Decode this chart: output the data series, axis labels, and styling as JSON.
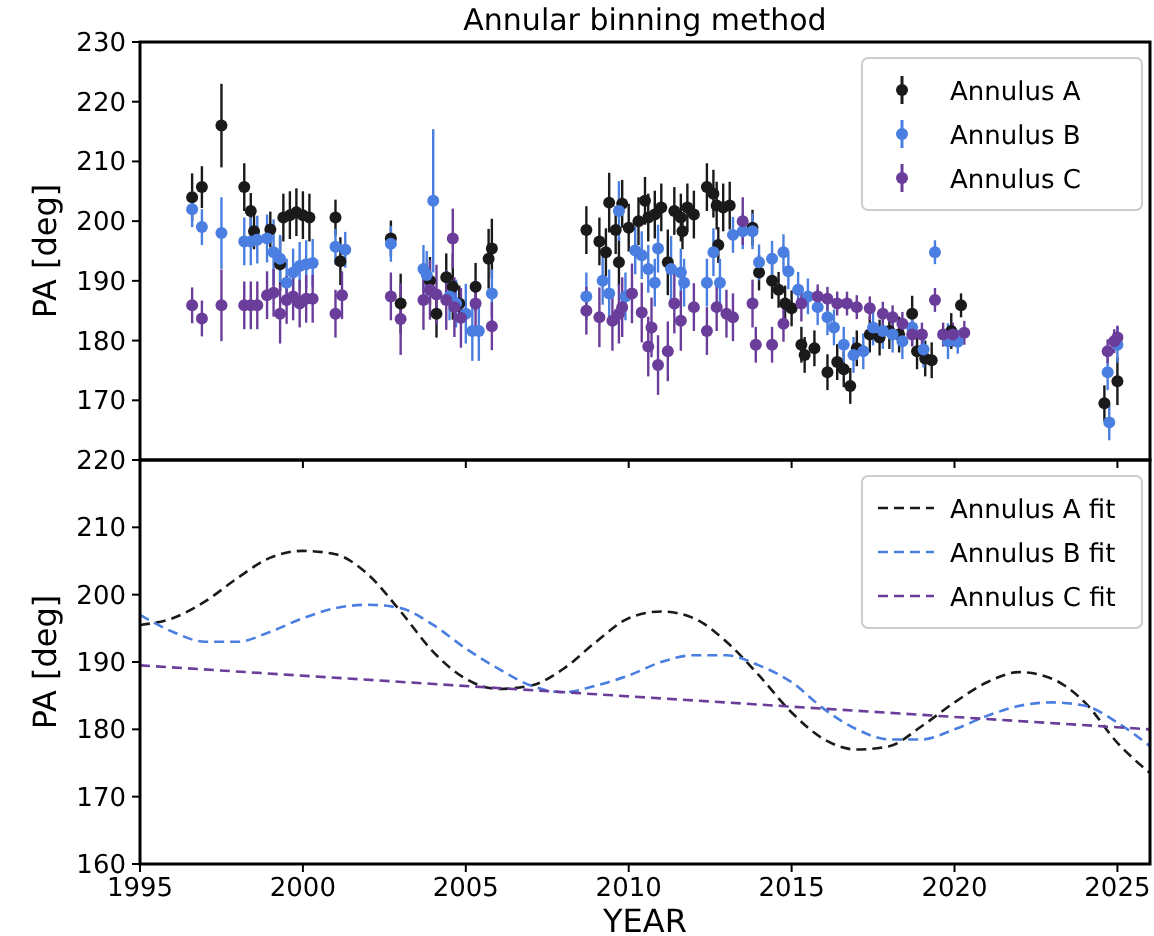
{
  "chart_data": [
    {
      "type": "scatter",
      "title": "Annular binning method",
      "ylabel": "PA [deg]",
      "xlim": [
        1995,
        2026
      ],
      "xticks": [
        1995,
        2000,
        2005,
        2010,
        2015,
        2020,
        2025
      ],
      "ylim": [
        160,
        230
      ],
      "yticks": [
        170,
        180,
        190,
        200,
        210,
        220,
        230
      ],
      "tick_labels": "y",
      "marker": "circle",
      "legend": "top right",
      "grid": false,
      "series": [
        {
          "name": "Annulus A",
          "color": "#1a1a1a",
          "x": [
            1996.6,
            1996.9,
            1997.5,
            1998.2,
            1998.4,
            1998.5,
            1999.0,
            1999.3,
            1999.4,
            1999.6,
            1999.8,
            2000.0,
            2000.2,
            2001.0,
            2001.15,
            2002.7,
            2003.0,
            2003.9,
            2004.1,
            2004.4,
            2004.6,
            2004.8,
            2005.3,
            2005.7,
            2005.8,
            2008.7,
            2009.1,
            2009.3,
            2009.4,
            2009.6,
            2009.7,
            2009.8,
            2010.0,
            2010.3,
            2010.5,
            2010.6,
            2010.8,
            2011.0,
            2011.2,
            2011.4,
            2011.6,
            2011.65,
            2011.8,
            2012.0,
            2012.4,
            2012.6,
            2012.7,
            2012.75,
            2012.9,
            2013.1,
            2013.8,
            2014.0,
            2014.4,
            2014.6,
            2014.8,
            2015.0,
            2015.3,
            2015.4,
            2015.7,
            2016.1,
            2016.4,
            2016.6,
            2016.8,
            2017.0,
            2017.4,
            2017.7,
            2018.0,
            2018.3,
            2018.7,
            2018.85,
            2019.1,
            2019.3,
            2019.9,
            2020.2,
            2024.6,
            2025.0
          ],
          "values": [
            204,
            205.7,
            216,
            205.7,
            201.7,
            198.3,
            198.6,
            192.8,
            200.6,
            201,
            201.5,
            201,
            200.6,
            200.6,
            193.3,
            197.1,
            186.2,
            190,
            184.5,
            190.6,
            189,
            186.2,
            189,
            193.7,
            195.4,
            198.5,
            196.6,
            194.8,
            203.1,
            198.5,
            193.1,
            202.9,
            198.9,
            200,
            203.4,
            200.6,
            201.1,
            202.3,
            193.1,
            201.7,
            200.6,
            198.3,
            202.3,
            201.1,
            205.7,
            204.6,
            202.6,
            196,
            202.3,
            202.6,
            198.9,
            191.4,
            190,
            188.5,
            186.2,
            185.4,
            179.3,
            177.6,
            178.7,
            174.7,
            176.4,
            175.2,
            172.4,
            178.7,
            181,
            180.5,
            181.6,
            181,
            184.5,
            178.2,
            177,
            176.7,
            181.6,
            185.9,
            169.5,
            173.2
          ],
          "errors": [
            4,
            3.5,
            7,
            4,
            3,
            3,
            3,
            4.5,
            4,
            4,
            4,
            4,
            4,
            3,
            4,
            3,
            5,
            4,
            4,
            4,
            5.5,
            3,
            4,
            5,
            5,
            4,
            4,
            4,
            5,
            4,
            4,
            4,
            4,
            4,
            4,
            4,
            4,
            4,
            5.5,
            4,
            4,
            3,
            4,
            4,
            4,
            4,
            4,
            3,
            4,
            4,
            3,
            3,
            3,
            3,
            3,
            3,
            3,
            3,
            3,
            3,
            3,
            3,
            3,
            3,
            3,
            3,
            3,
            3,
            3,
            3,
            3,
            3,
            3,
            2,
            3,
            4
          ]
        },
        {
          "name": "Annulus B",
          "color": "#4a7ee0",
          "x": [
            1996.6,
            1996.9,
            1997.5,
            1998.2,
            1998.4,
            1998.6,
            1998.9,
            1999.1,
            1999.3,
            1999.5,
            1999.7,
            1999.9,
            2000.1,
            2000.3,
            2001.0,
            2001.3,
            2002.7,
            2003.7,
            2003.8,
            2004.0,
            2004.5,
            2004.7,
            2005.0,
            2005.2,
            2005.4,
            2005.8,
            2008.7,
            2009.2,
            2009.4,
            2009.7,
            2009.9,
            2010.2,
            2010.4,
            2010.6,
            2010.8,
            2010.9,
            2011.3,
            2011.6,
            2011.7,
            2012.4,
            2012.6,
            2012.8,
            2013.2,
            2013.5,
            2013.8,
            2014.0,
            2014.4,
            2014.75,
            2014.9,
            2015.2,
            2015.5,
            2015.8,
            2016.1,
            2016.3,
            2016.6,
            2016.9,
            2017.2,
            2017.5,
            2017.8,
            2018.1,
            2018.4,
            2018.7,
            2019.05,
            2019.4,
            2019.8,
            2020.1,
            2024.7,
            2024.75,
            2025.0
          ],
          "values": [
            202,
            199,
            198,
            196.6,
            196.6,
            196.9,
            197.1,
            194.8,
            193.7,
            189.7,
            191.4,
            192.5,
            192.8,
            193,
            195.7,
            195.2,
            196.2,
            192,
            191,
            203.4,
            187.4,
            186.2,
            184.5,
            181.6,
            181.6,
            187.9,
            187.4,
            190,
            187.9,
            201.7,
            187.4,
            195.1,
            194.3,
            192,
            189.7,
            195.4,
            192,
            191.4,
            189.7,
            189.7,
            194.8,
            189.7,
            197.7,
            198.3,
            198.3,
            193.1,
            193.7,
            194.8,
            191.6,
            188.5,
            187.4,
            185.6,
            183.9,
            182.2,
            179.3,
            177.6,
            178.2,
            182.2,
            181.6,
            181,
            179.9,
            182.2,
            178.5,
            194.8,
            179.9,
            179.8,
            174.7,
            166.3,
            179.3
          ],
          "errors": [
            3,
            3,
            6,
            4,
            4,
            4,
            4,
            5.5,
            4,
            4,
            4,
            4,
            4,
            4,
            3,
            3,
            3,
            4,
            4,
            12,
            4,
            4,
            5,
            5,
            5,
            4,
            4,
            4,
            4,
            5,
            4,
            4,
            4,
            4,
            4,
            4,
            5.5,
            4,
            4,
            4,
            4,
            4,
            3,
            3,
            3,
            3,
            3,
            3,
            3,
            3,
            3,
            3,
            3,
            3,
            3,
            3,
            3,
            3,
            3,
            3,
            3,
            3,
            3,
            2,
            3,
            2,
            3,
            3,
            3
          ]
        },
        {
          "name": "Annulus C",
          "color": "#6a3d9a",
          "x": [
            1996.6,
            1996.9,
            1997.5,
            1998.2,
            1998.4,
            1998.6,
            1998.9,
            1999.1,
            1999.3,
            1999.5,
            1999.7,
            1999.9,
            2000.1,
            2000.3,
            2001.0,
            2001.2,
            2002.7,
            2003.0,
            2003.7,
            2003.9,
            2004.1,
            2004.4,
            2004.6,
            2004.65,
            2004.85,
            2005.3,
            2005.8,
            2008.7,
            2009.1,
            2009.5,
            2009.7,
            2009.8,
            2010.1,
            2010.4,
            2010.6,
            2010.7,
            2010.9,
            2011.2,
            2011.4,
            2011.6,
            2012.0,
            2012.4,
            2012.7,
            2013.0,
            2013.2,
            2013.5,
            2013.8,
            2013.9,
            2014.4,
            2014.75,
            2015.3,
            2015.8,
            2016.1,
            2016.4,
            2016.7,
            2017.0,
            2017.4,
            2017.8,
            2018.1,
            2018.4,
            2018.7,
            2019.0,
            2019.4,
            2019.65,
            2019.95,
            2020.3,
            2024.7,
            2024.9,
            2025.0
          ],
          "values": [
            185.9,
            183.7,
            185.9,
            185.9,
            185.9,
            185.9,
            187.6,
            188,
            184.5,
            186.8,
            187.4,
            186.2,
            187,
            187,
            184.5,
            187.6,
            187.4,
            183.6,
            186.8,
            188.5,
            187.7,
            186.8,
            197.1,
            185.6,
            183.8,
            186.2,
            182.4,
            185,
            183.9,
            183.3,
            184.5,
            185.6,
            187.9,
            184.7,
            179,
            182.2,
            175.9,
            178.2,
            186.2,
            183.3,
            185.6,
            181.6,
            185.6,
            184.5,
            183.9,
            200,
            186.2,
            179.3,
            179.3,
            182.8,
            186.2,
            187.4,
            187,
            186.2,
            186.2,
            185.6,
            185.4,
            184.5,
            183.9,
            182.8,
            181,
            181,
            186.8,
            181,
            181,
            181.3,
            178.2,
            179.9,
            180.5
          ],
          "errors": [
            3,
            3,
            6,
            4,
            4,
            4,
            4,
            4,
            5,
            4,
            4,
            4,
            4,
            4,
            4,
            4,
            4,
            6,
            5,
            5,
            5,
            5,
            5,
            5,
            5,
            4,
            4,
            4,
            5,
            5,
            5,
            5,
            5,
            5,
            5,
            5,
            5,
            5,
            5,
            5,
            4,
            4,
            4,
            4,
            4,
            4,
            4,
            3,
            3,
            3,
            3,
            2,
            2,
            2,
            2,
            2,
            2,
            2,
            2,
            2,
            2,
            2,
            2,
            2,
            2,
            2,
            2,
            2,
            2
          ]
        }
      ]
    },
    {
      "type": "line",
      "xlabel": "YEAR",
      "ylabel": "PA [deg]",
      "xlim": [
        1995,
        2026
      ],
      "xticks": [
        1995,
        2000,
        2005,
        2010,
        2015,
        2020,
        2025
      ],
      "ylim": [
        160,
        220
      ],
      "yticks": [
        160,
        170,
        180,
        190,
        200,
        210,
        220
      ],
      "line_style": "dashed",
      "marker": "none",
      "legend": "top right",
      "grid": false,
      "series": [
        {
          "name": "Annulus A fit",
          "color": "#1a1a1a",
          "x": [
            1995,
            1996,
            1997,
            1998,
            1999,
            2000,
            2001,
            2002,
            2003,
            2004,
            2005,
            2006,
            2007,
            2008,
            2009,
            2010,
            2011,
            2012,
            2013,
            2014,
            2015,
            2016,
            2017,
            2018,
            2019,
            2020,
            2021,
            2022,
            2023,
            2024,
            2025,
            2026
          ],
          "values": [
            195.5,
            196.5,
            199,
            202.5,
            205.5,
            206.5,
            206,
            203,
            197.5,
            191.5,
            187.5,
            186,
            186.5,
            189,
            193,
            196.5,
            197.5,
            196.5,
            193,
            188,
            182.5,
            178.5,
            177,
            177.5,
            180.5,
            184,
            187,
            188.5,
            187.5,
            184,
            178,
            173.5
          ]
        },
        {
          "name": "Annulus B fit",
          "color": "#4a7ee0",
          "x": [
            1995,
            1996,
            1997,
            1998,
            1999,
            2000,
            2001,
            2002,
            2003,
            2004,
            2005,
            2006,
            2007,
            2008,
            2009,
            2010,
            2011,
            2012,
            2013,
            2014,
            2015,
            2016,
            2017,
            2018,
            2019,
            2020,
            2021,
            2022,
            2023,
            2024,
            2025,
            2026
          ],
          "values": [
            197,
            194.5,
            193,
            193,
            194.5,
            196.5,
            198,
            198.5,
            198,
            195.5,
            192,
            189,
            186.5,
            185.5,
            186.5,
            188,
            190,
            191,
            191,
            189.5,
            187,
            183,
            180,
            178.5,
            178.5,
            180,
            182,
            183.5,
            184,
            183.5,
            181,
            177.5
          ]
        },
        {
          "name": "Annulus C fit",
          "color": "#6a3d9a",
          "x": [
            1995,
            2026
          ],
          "values": [
            189.5,
            180
          ]
        }
      ]
    }
  ]
}
